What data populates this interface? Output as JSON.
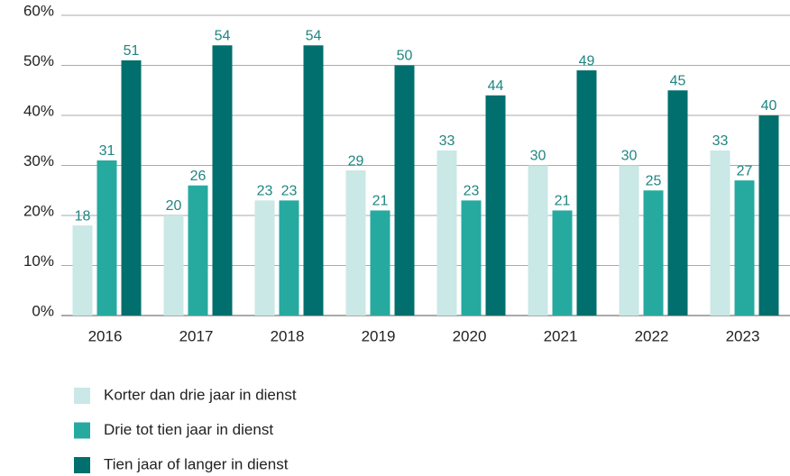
{
  "chart_data": {
    "type": "bar",
    "categories": [
      "2016",
      "2017",
      "2018",
      "2019",
      "2020",
      "2021",
      "2022",
      "2023"
    ],
    "series": [
      {
        "name": "Korter dan drie jaar in dienst",
        "color": "#cae8e5",
        "values": [
          18,
          20,
          23,
          29,
          33,
          30,
          30,
          33
        ]
      },
      {
        "name": "Drie tot tien jaar in dienst",
        "color": "#26aaa0",
        "values": [
          31,
          26,
          23,
          21,
          23,
          21,
          25,
          27
        ]
      },
      {
        "name": "Tien jaar of langer in dienst",
        "color": "#006f6d",
        "values": [
          51,
          54,
          54,
          50,
          44,
          49,
          45,
          40
        ]
      }
    ],
    "ylim": [
      0,
      60
    ],
    "yticks": [
      {
        "value": 0,
        "label": "0%"
      },
      {
        "value": 10,
        "label": "10%"
      },
      {
        "value": 20,
        "label": "20%"
      },
      {
        "value": 30,
        "label": "30%"
      },
      {
        "value": 40,
        "label": "40%"
      },
      {
        "value": 50,
        "label": "50%"
      },
      {
        "value": 60,
        "label": "60%"
      }
    ],
    "grid": true,
    "legend": "bottom-left"
  }
}
